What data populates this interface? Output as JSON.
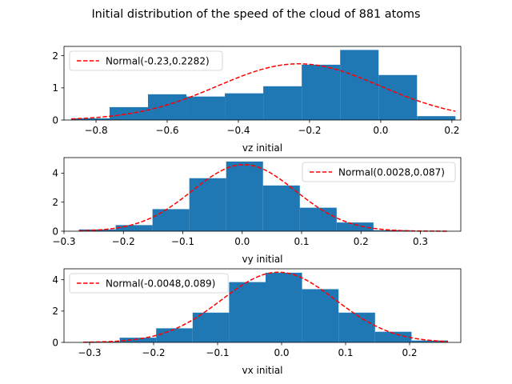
{
  "figure": {
    "title": "Initial distribution of the speed of the cloud of 881 atoms"
  },
  "colors": {
    "histogram": "#1f77b4",
    "normal_curve": "#ff0000"
  },
  "chart_data": [
    {
      "type": "bar",
      "subtype": "histogram_with_normal_fit",
      "xlabel": "vz initial",
      "xlim": [
        -0.89,
        0.225
      ],
      "ylim": [
        0,
        2.29
      ],
      "xticks": [
        -0.8,
        -0.6,
        -0.4,
        -0.2,
        0.0,
        0.2
      ],
      "xtick_labels": [
        "−0.8",
        "−0.6",
        "−0.4",
        "−0.2",
        "0.0",
        "0.2"
      ],
      "yticks": [
        0,
        1,
        2
      ],
      "ytick_labels": [
        "0",
        "1",
        "2"
      ],
      "bin_edges": [
        -0.87,
        -0.762,
        -0.654,
        -0.546,
        -0.438,
        -0.33,
        -0.222,
        -0.114,
        -0.006,
        0.102,
        0.21
      ],
      "values": [
        0.05,
        0.4,
        0.8,
        0.73,
        0.83,
        1.05,
        1.72,
        2.18,
        1.4,
        0.12
      ],
      "series": [
        {
          "name": "Normal(-0.23,0.2282)",
          "mean": -0.23,
          "std": 0.2282
        }
      ],
      "legend_position": "upper left"
    },
    {
      "type": "bar",
      "subtype": "histogram_with_normal_fit",
      "xlabel": "vy initial",
      "xlim": [
        -0.3,
        0.368
      ],
      "ylim": [
        0,
        5.07
      ],
      "xticks": [
        -0.3,
        -0.2,
        -0.1,
        0.0,
        0.1,
        0.2,
        0.3
      ],
      "xtick_labels": [
        "−0.3",
        "−0.2",
        "−0.1",
        "0.0",
        "0.1",
        "0.2",
        "0.3"
      ],
      "yticks": [
        0,
        2,
        4
      ],
      "ytick_labels": [
        "0",
        "2",
        "4"
      ],
      "bin_edges": [
        -0.275,
        -0.213,
        -0.151,
        -0.089,
        -0.027,
        0.035,
        0.097,
        0.159,
        0.221,
        0.283,
        0.345
      ],
      "values": [
        0.12,
        0.42,
        1.52,
        3.65,
        4.8,
        3.15,
        1.62,
        0.6,
        0.07,
        0.03
      ],
      "series": [
        {
          "name": "Normal(0.0028,0.087)",
          "mean": 0.0028,
          "std": 0.087
        }
      ],
      "legend_position": "upper right"
    },
    {
      "type": "bar",
      "subtype": "histogram_with_normal_fit",
      "xlabel": "vx initial",
      "xlim": [
        -0.34,
        0.28
      ],
      "ylim": [
        0,
        4.7
      ],
      "xticks": [
        -0.3,
        -0.2,
        -0.1,
        0.0,
        0.1,
        0.2
      ],
      "xtick_labels": [
        "−0.3",
        "−0.2",
        "−0.1",
        "0.0",
        "0.1",
        "0.2"
      ],
      "yticks": [
        0,
        2,
        4
      ],
      "ytick_labels": [
        "0",
        "2",
        "4"
      ],
      "bin_edges": [
        -0.31,
        -0.253,
        -0.196,
        -0.139,
        -0.082,
        -0.025,
        0.032,
        0.089,
        0.146,
        0.203,
        0.26
      ],
      "values": [
        0.05,
        0.3,
        0.9,
        1.9,
        3.85,
        4.45,
        3.4,
        1.9,
        0.68,
        0.12
      ],
      "series": [
        {
          "name": "Normal(-0.0048,0.089)",
          "mean": -0.0048,
          "std": 0.089
        }
      ],
      "legend_position": "upper left"
    }
  ]
}
